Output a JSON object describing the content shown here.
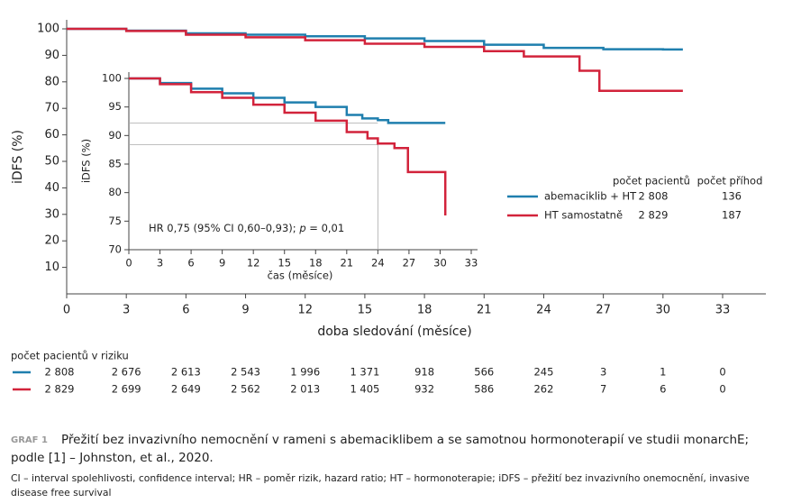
{
  "chart_data": [
    {
      "type": "step",
      "xlabel": "doba sledování (měsíce)",
      "ylabel": "iDFS (%)",
      "xlim": [
        0,
        33
      ],
      "xticks": [
        0,
        3,
        6,
        9,
        12,
        15,
        18,
        21,
        24,
        27,
        30,
        33
      ],
      "ylim": [
        0,
        100
      ],
      "yticks": [
        10,
        20,
        30,
        40,
        50,
        60,
        70,
        80,
        90,
        100
      ],
      "series": [
        {
          "name": "abemaciklib + HT",
          "color": "#1f7fae",
          "x": [
            0,
            3,
            6,
            9,
            12,
            15,
            18,
            21,
            24,
            27,
            30,
            31
          ],
          "values": [
            100,
            99.3,
            98.3,
            97.8,
            97.2,
            96.4,
            95.4,
            94,
            92.8,
            92.3,
            92.2,
            92.2
          ]
        },
        {
          "name": "HT samostatně",
          "color": "#d2233b",
          "x": [
            0,
            3,
            6,
            9,
            12,
            15,
            18,
            21,
            23,
            25.8,
            26.8,
            31
          ],
          "values": [
            100,
            99.2,
            97.8,
            96.8,
            95.7,
            94.4,
            93.2,
            91.6,
            89.6,
            84.2,
            76.6,
            76.6
          ]
        }
      ],
      "legend": {
        "headers": [
          "počet pacientů",
          "počet příhod"
        ],
        "rows": [
          [
            "2 808",
            "136"
          ],
          [
            "2 829",
            "187"
          ]
        ]
      }
    },
    {
      "type": "step",
      "xlabel": "čas (měsíce)",
      "ylabel": "iDFS (%)",
      "xlim": [
        0,
        33
      ],
      "xticks": [
        0,
        3,
        6,
        9,
        12,
        15,
        18,
        21,
        24,
        27,
        30,
        33
      ],
      "ylim": [
        70,
        100
      ],
      "yticks": [
        70,
        75,
        80,
        85,
        90,
        95,
        100
      ],
      "annotation": [
        "HR 0,75 (95% CI 0,60–0,93); ",
        "p",
        " = 0,01"
      ],
      "reference_lines": {
        "x": 24,
        "y": [
          92.2,
          88.4
        ]
      },
      "series": [
        {
          "name": "abemaciklib + HT",
          "color": "#1f7fae",
          "x": [
            0,
            3,
            6,
            9,
            12,
            15,
            18,
            21,
            22.5,
            24,
            25,
            30.5
          ],
          "values": [
            100,
            99.2,
            98.2,
            97.4,
            96.6,
            95.8,
            95,
            93.6,
            93,
            92.7,
            92.2,
            92.2
          ]
        },
        {
          "name": "HT samostatně",
          "color": "#d2233b",
          "x": [
            0,
            3,
            6,
            9,
            12,
            15,
            18,
            21,
            23,
            24,
            25.6,
            26.9,
            30.5
          ],
          "values": [
            100,
            99,
            97.6,
            96.6,
            95.4,
            94,
            92.6,
            90.6,
            89.5,
            88.6,
            87.8,
            83.6,
            76
          ]
        }
      ]
    }
  ],
  "risk_table": {
    "title": "počet pacientů v riziku",
    "rows": [
      [
        "2 808",
        "2 676",
        "2 613",
        "2 543",
        "1 996",
        "1 371",
        "918",
        "566",
        "245",
        "3",
        "1",
        "0"
      ],
      [
        "2 829",
        "2 699",
        "2 649",
        "2 562",
        "2 013",
        "1 405",
        "932",
        "586",
        "262",
        "7",
        "6",
        "0"
      ]
    ]
  },
  "caption": {
    "label": "GRAF 1",
    "text": [
      "Přežití bez invazivního nemocnění v rameni s abemaciklibem a se samotnou hormonoterapií ve studii monarchE;",
      "podle [1] – Johnston, et al., 2020."
    ],
    "footnote": [
      "CI – interval spolehlivosti, confidence interval; HR – poměr rizik, hazard ratio; HT – hormonoterapie; iDFS – přežití bez invazivního onemocnění, invasive",
      "disease free survival"
    ]
  }
}
